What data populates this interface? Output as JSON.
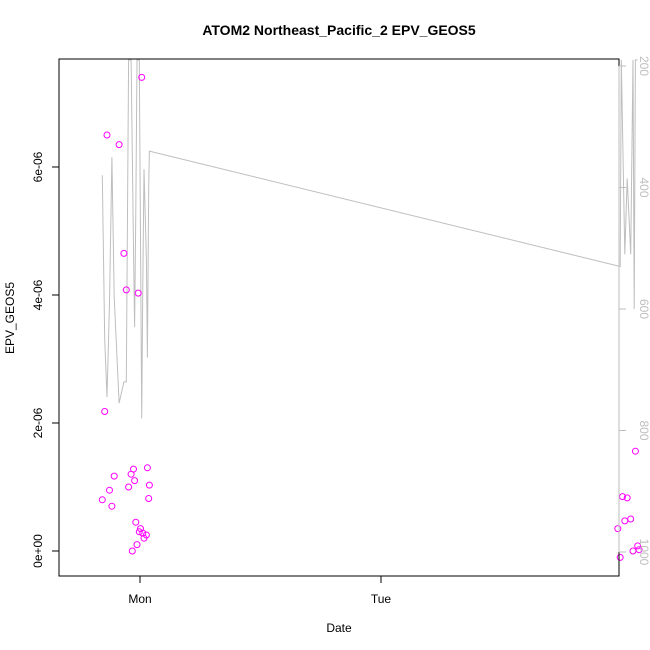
{
  "chart_data": {
    "type": "scatter",
    "title": "ATOM2 Northeast_Pacific_2 EPV_GEOS5",
    "xlabel": "Date",
    "ylabel": "EPV_GEOS5",
    "x_ticks": [
      "Mon",
      "Tue"
    ],
    "y_ticks": [
      "0e+00",
      "2e-06",
      "4e-06",
      "6e-06"
    ],
    "y_lim": [
      -3e-07,
      7.7e-06
    ],
    "y_right_ticks": [
      "200",
      "400",
      "600",
      "800",
      "1000"
    ],
    "y_right_lim": [
      1020,
      190
    ],
    "grid": false,
    "colors": {
      "points": "#ff00ff",
      "line": "#bebebe",
      "axis": "#000000",
      "right_axis": "#bebebe"
    },
    "series": [
      {
        "type": "scatter",
        "color": "#ff00ff",
        "points": [
          {
            "x": "Sun 20:15",
            "y": 8e-07
          },
          {
            "x": "Sun 20:29",
            "y": 2.18e-06
          },
          {
            "x": "Sun 20:43",
            "y": 6.5e-06
          },
          {
            "x": "Sun 20:58",
            "y": 9.5e-07
          },
          {
            "x": "Sun 21:12",
            "y": 7e-07
          },
          {
            "x": "Sun 21:26",
            "y": 1.17e-06
          },
          {
            "x": "Sun 21:55",
            "y": 6.35e-06
          },
          {
            "x": "Sun 22:24",
            "y": 4.65e-06
          },
          {
            "x": "Sun 22:38",
            "y": 4.08e-06
          },
          {
            "x": "Sun 22:52",
            "y": 1e-06
          },
          {
            "x": "Sun 23:07",
            "y": 1.2e-06
          },
          {
            "x": "Sun 23:14",
            "y": 0.0
          },
          {
            "x": "Sun 23:21",
            "y": 1.28e-06
          },
          {
            "x": "Sun 23:28",
            "y": 1.1e-06
          },
          {
            "x": "Sun 23:35",
            "y": 4.5e-07
          },
          {
            "x": "Sun 23:42",
            "y": 1e-07
          },
          {
            "x": "Sun 23:49",
            "y": 4.03e-06
          },
          {
            "x": "Sun 23:56",
            "y": 3e-07
          },
          {
            "x": "Mon 00:03",
            "y": 3.5e-07
          },
          {
            "x": "Mon 00:10",
            "y": 7.4e-06
          },
          {
            "x": "Mon 00:17",
            "y": 2.8e-07
          },
          {
            "x": "Mon 00:24",
            "y": 2e-07
          },
          {
            "x": "Mon 00:38",
            "y": 2.5e-07
          },
          {
            "x": "Mon 00:44",
            "y": 1.3e-06
          },
          {
            "x": "Mon 00:52",
            "y": 8.2e-07
          },
          {
            "x": "Mon 00:56",
            "y": 1.03e-06
          },
          {
            "x": "Tue 23:35",
            "y": 3.5e-07
          },
          {
            "x": "Tue 23:49",
            "y": -1e-07
          },
          {
            "x": "Wed 00:03",
            "y": 8.5e-07
          },
          {
            "x": "Wed 00:17",
            "y": 4.7e-07
          },
          {
            "x": "Wed 00:31",
            "y": 8.3e-07
          },
          {
            "x": "Wed 00:52",
            "y": 5e-07
          },
          {
            "x": "Wed 01:06",
            "y": 0.0
          },
          {
            "x": "Wed 01:20",
            "y": 1.56e-06
          },
          {
            "x": "Wed 01:34",
            "y": 8e-08
          },
          {
            "x": "Wed 01:42",
            "y": 2e-08
          }
        ]
      },
      {
        "type": "line",
        "axis": "right",
        "color": "#bebebe",
        "points": [
          {
            "x": "Sun 20:15",
            "y": 380
          },
          {
            "x": "Sun 20:29",
            "y": 650
          },
          {
            "x": "Sun 20:43",
            "y": 745
          },
          {
            "x": "Sun 20:58",
            "y": 590
          },
          {
            "x": "Sun 21:12",
            "y": 350
          },
          {
            "x": "Sun 21:26",
            "y": 580
          },
          {
            "x": "Sun 21:55",
            "y": 755
          },
          {
            "x": "Sun 22:24",
            "y": 720
          },
          {
            "x": "Sun 22:38",
            "y": 720
          },
          {
            "x": "Sun 22:52",
            "y": 190
          },
          {
            "x": "Sun 23:07",
            "y": 190
          },
          {
            "x": "Sun 23:21",
            "y": 500
          },
          {
            "x": "Sun 23:28",
            "y": 630
          },
          {
            "x": "Sun 23:35",
            "y": 440
          },
          {
            "x": "Sun 23:42",
            "y": 190
          },
          {
            "x": "Sun 23:56",
            "y": 190
          },
          {
            "x": "Mon 00:10",
            "y": 780
          },
          {
            "x": "Mon 00:17",
            "y": 560
          },
          {
            "x": "Mon 00:24",
            "y": 370
          },
          {
            "x": "Mon 00:38",
            "y": 520
          },
          {
            "x": "Mon 00:44",
            "y": 680
          },
          {
            "x": "Mon 00:52",
            "y": 400
          },
          {
            "x": "Mon 00:56",
            "y": 340
          },
          {
            "x": "Tue 23:49",
            "y": 530
          },
          {
            "x": "Tue 23:56",
            "y": 190
          },
          {
            "x": "Wed 00:17",
            "y": 510
          },
          {
            "x": "Wed 00:31",
            "y": 385
          },
          {
            "x": "Wed 00:52",
            "y": 510
          },
          {
            "x": "Wed 01:06",
            "y": 190
          },
          {
            "x": "Wed 01:13",
            "y": 600
          },
          {
            "x": "Wed 01:20",
            "y": 190
          },
          {
            "x": "Wed 01:34",
            "y": 190
          }
        ]
      }
    ]
  }
}
